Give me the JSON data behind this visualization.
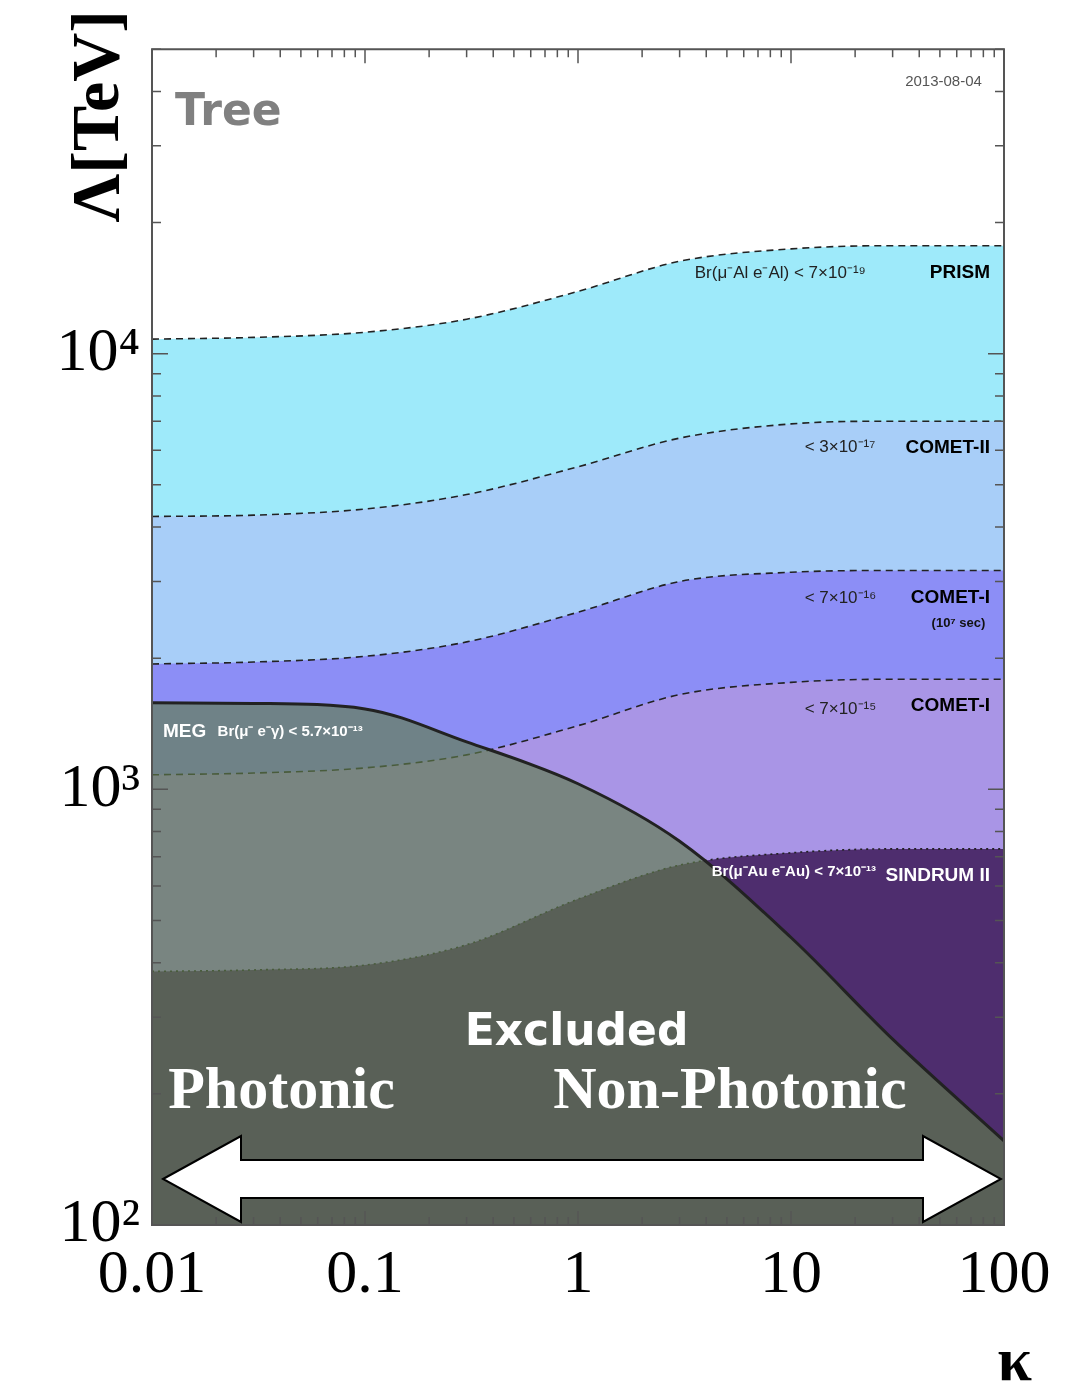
{
  "chart_data": {
    "type": "area",
    "xlabel": "κ",
    "ylabel": "Λ[TeV]",
    "x": [
      0.01,
      0.03,
      0.1,
      0.3,
      1,
      3,
      10,
      30,
      100
    ],
    "series": [
      {
        "name": "PRISM",
        "color": "#9eeafa",
        "line_style": "dashed",
        "values": [
          10800,
          10900,
          11200,
          12000,
          13900,
          16300,
          17400,
          17700,
          17700
        ]
      },
      {
        "name": "COMET-II",
        "color": "#a8cef8",
        "line_style": "dashed",
        "values": [
          4230,
          4260,
          4400,
          4750,
          5500,
          6400,
          6900,
          7000,
          7000
        ]
      },
      {
        "name": "COMET-I",
        "color": "#8c8ef6",
        "line_style": "dashed",
        "values": [
          1940,
          1960,
          2020,
          2180,
          2550,
          3000,
          3150,
          3180,
          3180
        ]
      },
      {
        "name": "COMET-I",
        "color": "#a995e6",
        "line_style": "dashed",
        "values": [
          1080,
          1090,
          1120,
          1200,
          1400,
          1650,
          1760,
          1790,
          1790
        ]
      },
      {
        "name": "SINDRUM II",
        "color": "#4e2d6e",
        "line_style": "dotted",
        "values": [
          382,
          385,
          395,
          440,
          560,
          670,
          715,
          730,
          730
        ]
      },
      {
        "name": "MEG",
        "color": "#5f7d4b",
        "line_style": "solid",
        "values": [
          1580,
          1575,
          1530,
          1285,
          1030,
          760,
          457,
          267,
          156
        ]
      }
    ],
    "xlim": [
      0.01,
      100
    ],
    "ylim": [
      100,
      50000
    ],
    "xticks": [
      0.01,
      {
        "value": 0.02,
        "label": null
      },
      {
        "value": 0.03,
        "label": null
      },
      {
        "value": 0.04,
        "label": null
      },
      {
        "value": 0.05,
        "label": null
      },
      {
        "value": 0.06,
        "label": null
      },
      {
        "value": 0.07,
        "label": null
      },
      {
        "value": 0.08,
        "label": null
      },
      {
        "value": 0.09,
        "label": null
      },
      0.1,
      {
        "value": 0.2,
        "label": null
      },
      {
        "value": 0.3,
        "label": null
      },
      {
        "value": 0.4,
        "label": null
      },
      {
        "value": 0.5,
        "label": null
      },
      {
        "value": 0.6,
        "label": null
      },
      {
        "value": 0.7,
        "label": null
      },
      {
        "value": 0.8,
        "label": null
      },
      {
        "value": 0.9,
        "label": null
      },
      1,
      {
        "value": 2,
        "label": null
      },
      {
        "value": 3,
        "label": null
      },
      {
        "value": 4,
        "label": null
      },
      {
        "value": 5,
        "label": null
      },
      {
        "value": 6,
        "label": null
      },
      {
        "value": 7,
        "label": null
      },
      {
        "value": 8,
        "label": null
      },
      {
        "value": 9,
        "label": null
      },
      10,
      {
        "value": 20,
        "label": null
      },
      {
        "value": 30,
        "label": null
      },
      {
        "value": 40,
        "label": null
      },
      {
        "value": 50,
        "label": null
      },
      {
        "value": 60,
        "label": null
      },
      {
        "value": 70,
        "label": null
      },
      {
        "value": 80,
        "label": null
      },
      {
        "value": 90,
        "label": null
      },
      100
    ],
    "yticks": [
      {
        "value": 100,
        "label": "10²"
      },
      {
        "value": 200,
        "label": null
      },
      {
        "value": 300,
        "label": null
      },
      {
        "value": 400,
        "label": null
      },
      {
        "value": 500,
        "label": null
      },
      {
        "value": 600,
        "label": null
      },
      {
        "value": 700,
        "label": null
      },
      {
        "value": 800,
        "label": null
      },
      {
        "value": 900,
        "label": null
      },
      {
        "value": 1000,
        "label": "10³"
      },
      {
        "value": 2000,
        "label": null
      },
      {
        "value": 3000,
        "label": null
      },
      {
        "value": 4000,
        "label": null
      },
      {
        "value": 5000,
        "label": null
      },
      {
        "value": 6000,
        "label": null
      },
      {
        "value": 7000,
        "label": null
      },
      {
        "value": 8000,
        "label": null
      },
      {
        "value": 9000,
        "label": null
      },
      {
        "value": 10000,
        "label": "10⁴"
      },
      {
        "value": 20000,
        "label": null
      },
      {
        "value": 30000,
        "label": null
      },
      {
        "value": 40000,
        "label": null
      },
      {
        "value": 50000,
        "label": null
      }
    ],
    "log": "xy",
    "grid": false,
    "legend": "right",
    "marker": "none",
    "annotations": [
      "Tree",
      "2013-08-04",
      "Br(μ⁻Al e⁻Al) < 7×10⁻¹⁹",
      "< 3×10⁻¹⁷",
      "< 7×10⁻¹⁶",
      "(10⁷ sec)",
      "< 7×10⁻¹⁵",
      "Br(μ⁻ e⁻γ) < 5.7×10⁻¹³",
      "Br(μ⁻Au e⁻Au) < 7×10⁻¹³",
      "Excluded",
      "Photonic",
      "Non-Photonic"
    ]
  }
}
